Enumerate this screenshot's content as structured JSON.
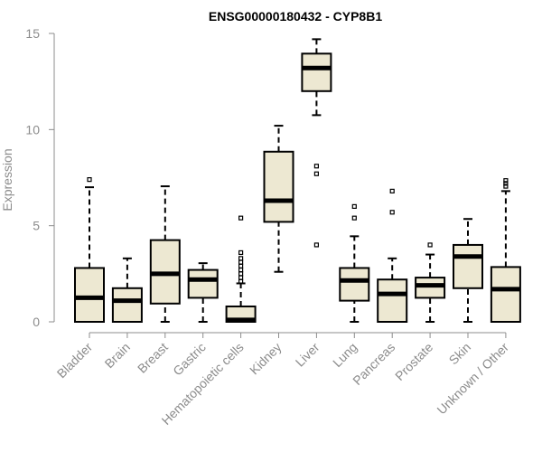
{
  "chart_data": {
    "type": "boxplot",
    "title": "ENSG00000180432 - CYP8B1",
    "ylabel": "Expression",
    "xlabel": "",
    "ylim": [
      0,
      15
    ],
    "yticks": [
      0,
      5,
      10,
      15
    ],
    "box_fill": "#ede8d2",
    "categories": [
      "Bladder",
      "Brain",
      "Breast",
      "Gastric",
      "Hematopoietic cells",
      "Kidney",
      "Liver",
      "Lung",
      "Pancreas",
      "Prostate",
      "Skin",
      "Unknown / Other"
    ],
    "boxes": [
      {
        "name": "Bladder",
        "whisker_low": 0,
        "q1": 0,
        "median": 1.25,
        "q3": 2.8,
        "whisker_high": 7.0,
        "outliers": [
          7.4
        ]
      },
      {
        "name": "Brain",
        "whisker_low": 0,
        "q1": 0,
        "median": 1.1,
        "q3": 1.75,
        "whisker_high": 3.3,
        "outliers": []
      },
      {
        "name": "Breast",
        "whisker_low": 0,
        "q1": 0.95,
        "median": 2.5,
        "q3": 4.25,
        "whisker_high": 7.05,
        "outliers": []
      },
      {
        "name": "Gastric",
        "whisker_low": 0,
        "q1": 1.25,
        "median": 2.2,
        "q3": 2.7,
        "whisker_high": 3.05,
        "outliers": []
      },
      {
        "name": "Hematopoietic cells",
        "whisker_low": 0,
        "q1": 0,
        "median": 0.1,
        "q3": 0.8,
        "whisker_high": 2.0,
        "outliers": [
          5.4,
          3.6,
          3.3,
          3.1,
          2.9,
          2.7,
          2.5,
          2.3,
          2.1
        ]
      },
      {
        "name": "Kidney",
        "whisker_low": 2.6,
        "q1": 5.2,
        "median": 6.3,
        "q3": 8.85,
        "whisker_high": 10.2,
        "outliers": []
      },
      {
        "name": "Liver",
        "whisker_low": 10.75,
        "q1": 12.0,
        "median": 13.2,
        "q3": 13.95,
        "whisker_high": 14.7,
        "outliers": [
          8.1,
          7.7,
          4.0
        ]
      },
      {
        "name": "Lung",
        "whisker_low": 0,
        "q1": 1.1,
        "median": 2.15,
        "q3": 2.8,
        "whisker_high": 4.45,
        "outliers": [
          6.0,
          5.4
        ]
      },
      {
        "name": "Pancreas",
        "whisker_low": 0,
        "q1": 0,
        "median": 1.45,
        "q3": 2.2,
        "whisker_high": 3.3,
        "outliers": [
          6.8,
          5.7
        ]
      },
      {
        "name": "Prostate",
        "whisker_low": 0,
        "q1": 1.25,
        "median": 1.9,
        "q3": 2.3,
        "whisker_high": 3.5,
        "outliers": [
          4.0
        ]
      },
      {
        "name": "Skin",
        "whisker_low": 0,
        "q1": 1.75,
        "median": 3.4,
        "q3": 4.0,
        "whisker_high": 5.35,
        "outliers": []
      },
      {
        "name": "Unknown / Other",
        "whisker_low": 0,
        "q1": 0,
        "median": 1.7,
        "q3": 2.85,
        "whisker_high": 6.8,
        "outliers": [
          7.35,
          7.2,
          7.05
        ]
      }
    ]
  }
}
